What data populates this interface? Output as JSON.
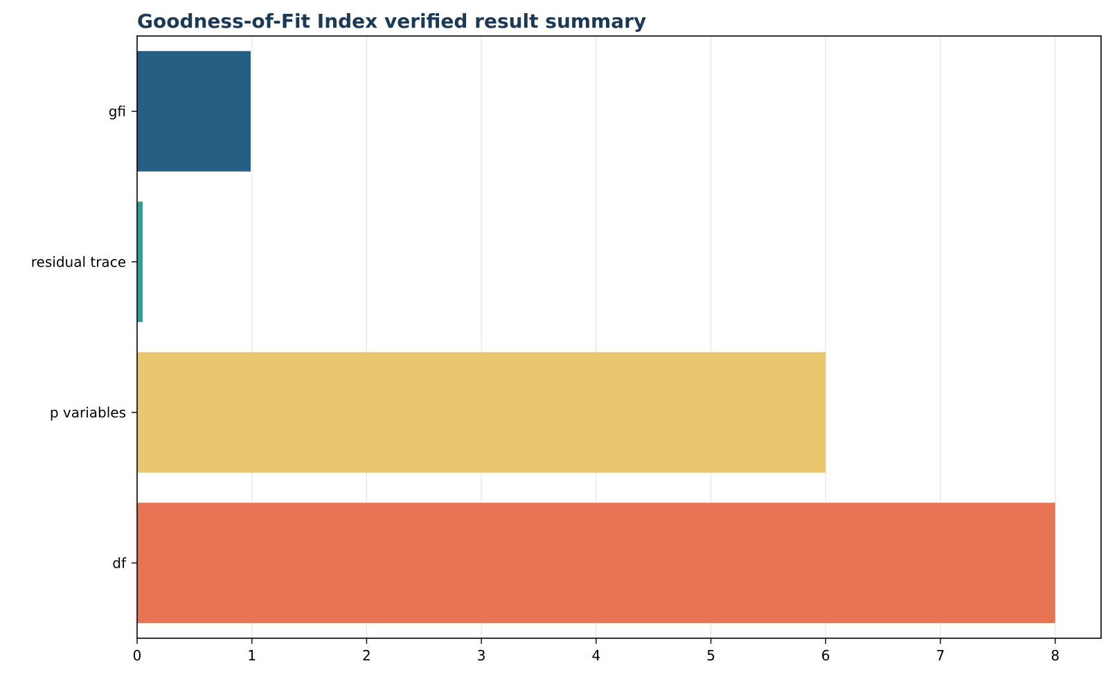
{
  "chart_data": {
    "type": "bar",
    "orientation": "horizontal",
    "title": "Goodness-of-Fit Index verified result summary",
    "xlabel": "",
    "ylabel": "",
    "categories": [
      "gfi",
      "residual trace",
      "p variables",
      "df"
    ],
    "values": [
      0.9896,
      0.0483,
      6,
      8
    ],
    "colors": [
      "#1f5a80",
      "#2a9d8f",
      "#e9c46a",
      "#e76f51"
    ],
    "xlim": [
      0,
      8.4
    ],
    "xticks": [
      0,
      1,
      2,
      3,
      4,
      5,
      6,
      7,
      8
    ],
    "grid": "x-axis only",
    "legend": "none"
  }
}
